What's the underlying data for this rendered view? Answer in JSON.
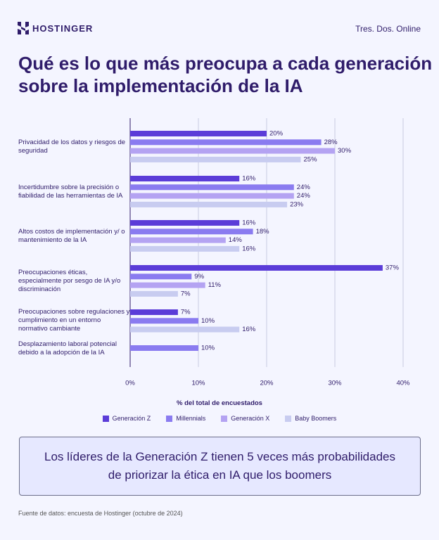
{
  "header": {
    "brand": "HOSTINGER",
    "site": "Tres. Dos. Online"
  },
  "chart_data": {
    "type": "bar",
    "orientation": "horizontal",
    "title": "Qué es lo que más preocupa a cada generación sobre la implementación de la IA",
    "x_label": "% del total de encuestados",
    "categories": [
      "Privacidad de los datos y riesgos de seguridad",
      "Incertidumbre sobre la precisión o fiabilidad de las herramientas de IA",
      "Altos costos de implementación y/ o mantenimiento de la IA",
      "Preocupaciones éticas, especialmente por sesgo de IA y/o discriminación",
      "Preocupaciones sobre regulaciones y cumplimiento en un entorno normativo cambiante",
      "Desplazamiento laboral potencial debido a la adopción de la IA"
    ],
    "series": [
      {
        "name": "Generación Z",
        "color": "#5b3cd8",
        "values": [
          20,
          16,
          16,
          37,
          7,
          null
        ],
        "value_labels": [
          "20%",
          "16%",
          "16%",
          "37%",
          "7%",
          null
        ]
      },
      {
        "name": "Millennials",
        "color": "#8a7bf0",
        "values": [
          28,
          24,
          18,
          9,
          10,
          10
        ],
        "value_labels": [
          "28%",
          "24%",
          "18%",
          "9%",
          "10%",
          "10%"
        ]
      },
      {
        "name": "Generación X",
        "color": "#b4a3f2",
        "values": [
          30,
          24,
          14,
          11,
          null,
          null
        ],
        "value_labels": [
          "30%",
          "24%",
          "14%",
          "11%",
          null,
          null
        ]
      },
      {
        "name": "Baby Boomers",
        "color": "#c8ccf0",
        "values": [
          25,
          23,
          16,
          7,
          16,
          null
        ],
        "value_labels": [
          "25%",
          "23%",
          "16%",
          "7%",
          "16%",
          null
        ]
      }
    ],
    "xlim": [
      0,
      40
    ],
    "xticks": [
      {
        "value": 0,
        "label": "0%"
      },
      {
        "value": 10,
        "label": "10%"
      },
      {
        "value": 20,
        "label": "20%"
      },
      {
        "value": 30,
        "label": "30%"
      },
      {
        "value": 40,
        "label": "40%"
      }
    ],
    "grid": true
  },
  "callout": "Los líderes de la Generación Z tienen 5 veces más probabilidades de priorizar la ética en IA que los boomers",
  "source": "Fuente de datos: encuesta de Hostinger (octubre de 2024)"
}
